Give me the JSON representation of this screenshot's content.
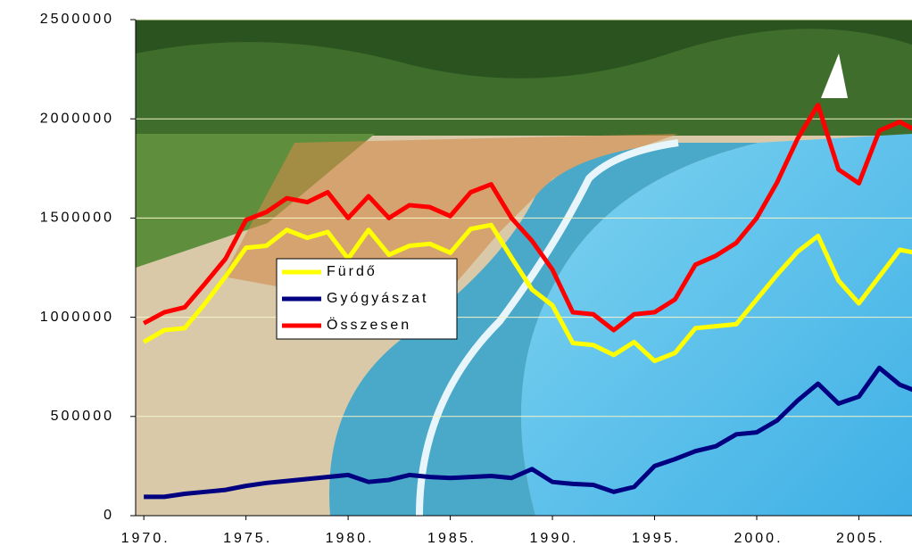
{
  "chart_data": {
    "type": "line",
    "x": [
      1970,
      1971,
      1972,
      1973,
      1974,
      1975,
      1976,
      1977,
      1978,
      1979,
      1980,
      1981,
      1982,
      1983,
      1984,
      1985,
      1986,
      1987,
      1988,
      1989,
      1990,
      1991,
      1992,
      1993,
      1994,
      1995,
      1996,
      1997,
      1998,
      1999,
      2000,
      2001,
      2002,
      2003,
      2004,
      2005,
      2006,
      2007,
      2008
    ],
    "series": [
      {
        "name": "Fürdő",
        "color": "#ffff00",
        "values": [
          875000,
          935000,
          945000,
          1070000,
          1205000,
          1350000,
          1360000,
          1440000,
          1400000,
          1430000,
          1295000,
          1440000,
          1315000,
          1360000,
          1370000,
          1325000,
          1445000,
          1465000,
          1300000,
          1140000,
          1060000,
          870000,
          860000,
          810000,
          875000,
          780000,
          820000,
          945000,
          955000,
          965000,
          1090000,
          1215000,
          1330000,
          1410000,
          1185000,
          1070000,
          1205000,
          1340000,
          1320000
        ]
      },
      {
        "name": "Gyógyászat",
        "color": "#000080",
        "values": [
          95000,
          95000,
          110000,
          120000,
          130000,
          150000,
          165000,
          175000,
          185000,
          195000,
          205000,
          170000,
          180000,
          205000,
          195000,
          190000,
          195000,
          200000,
          190000,
          235000,
          170000,
          160000,
          155000,
          120000,
          145000,
          250000,
          285000,
          325000,
          350000,
          410000,
          420000,
          480000,
          580000,
          665000,
          565000,
          600000,
          745000,
          660000,
          620000
        ]
      },
      {
        "name": "Összesen",
        "color": "#ff0000",
        "values": [
          970000,
          1025000,
          1050000,
          1170000,
          1295000,
          1490000,
          1530000,
          1600000,
          1580000,
          1630000,
          1500000,
          1610000,
          1500000,
          1565000,
          1555000,
          1510000,
          1630000,
          1670000,
          1500000,
          1385000,
          1240000,
          1025000,
          1015000,
          935000,
          1015000,
          1025000,
          1090000,
          1265000,
          1310000,
          1375000,
          1500000,
          1680000,
          1900000,
          2070000,
          1745000,
          1675000,
          1940000,
          1985000,
          1930000
        ]
      }
    ],
    "xlim": [
      1969.6,
      2007.6
    ],
    "xticks": [
      {
        "value": 1970,
        "label": "1970."
      },
      {
        "value": 1975,
        "label": "1975."
      },
      {
        "value": 1980,
        "label": "1980."
      },
      {
        "value": 1985,
        "label": "1985."
      },
      {
        "value": 1990,
        "label": "1990."
      },
      {
        "value": 1995,
        "label": "1995."
      },
      {
        "value": 2000,
        "label": "2000."
      },
      {
        "value": 2005,
        "label": "2005."
      }
    ],
    "ylim": [
      0,
      2500000
    ],
    "yticks": [
      0,
      500000,
      1000000,
      1500000,
      2000000,
      2500000
    ],
    "grid": true
  }
}
